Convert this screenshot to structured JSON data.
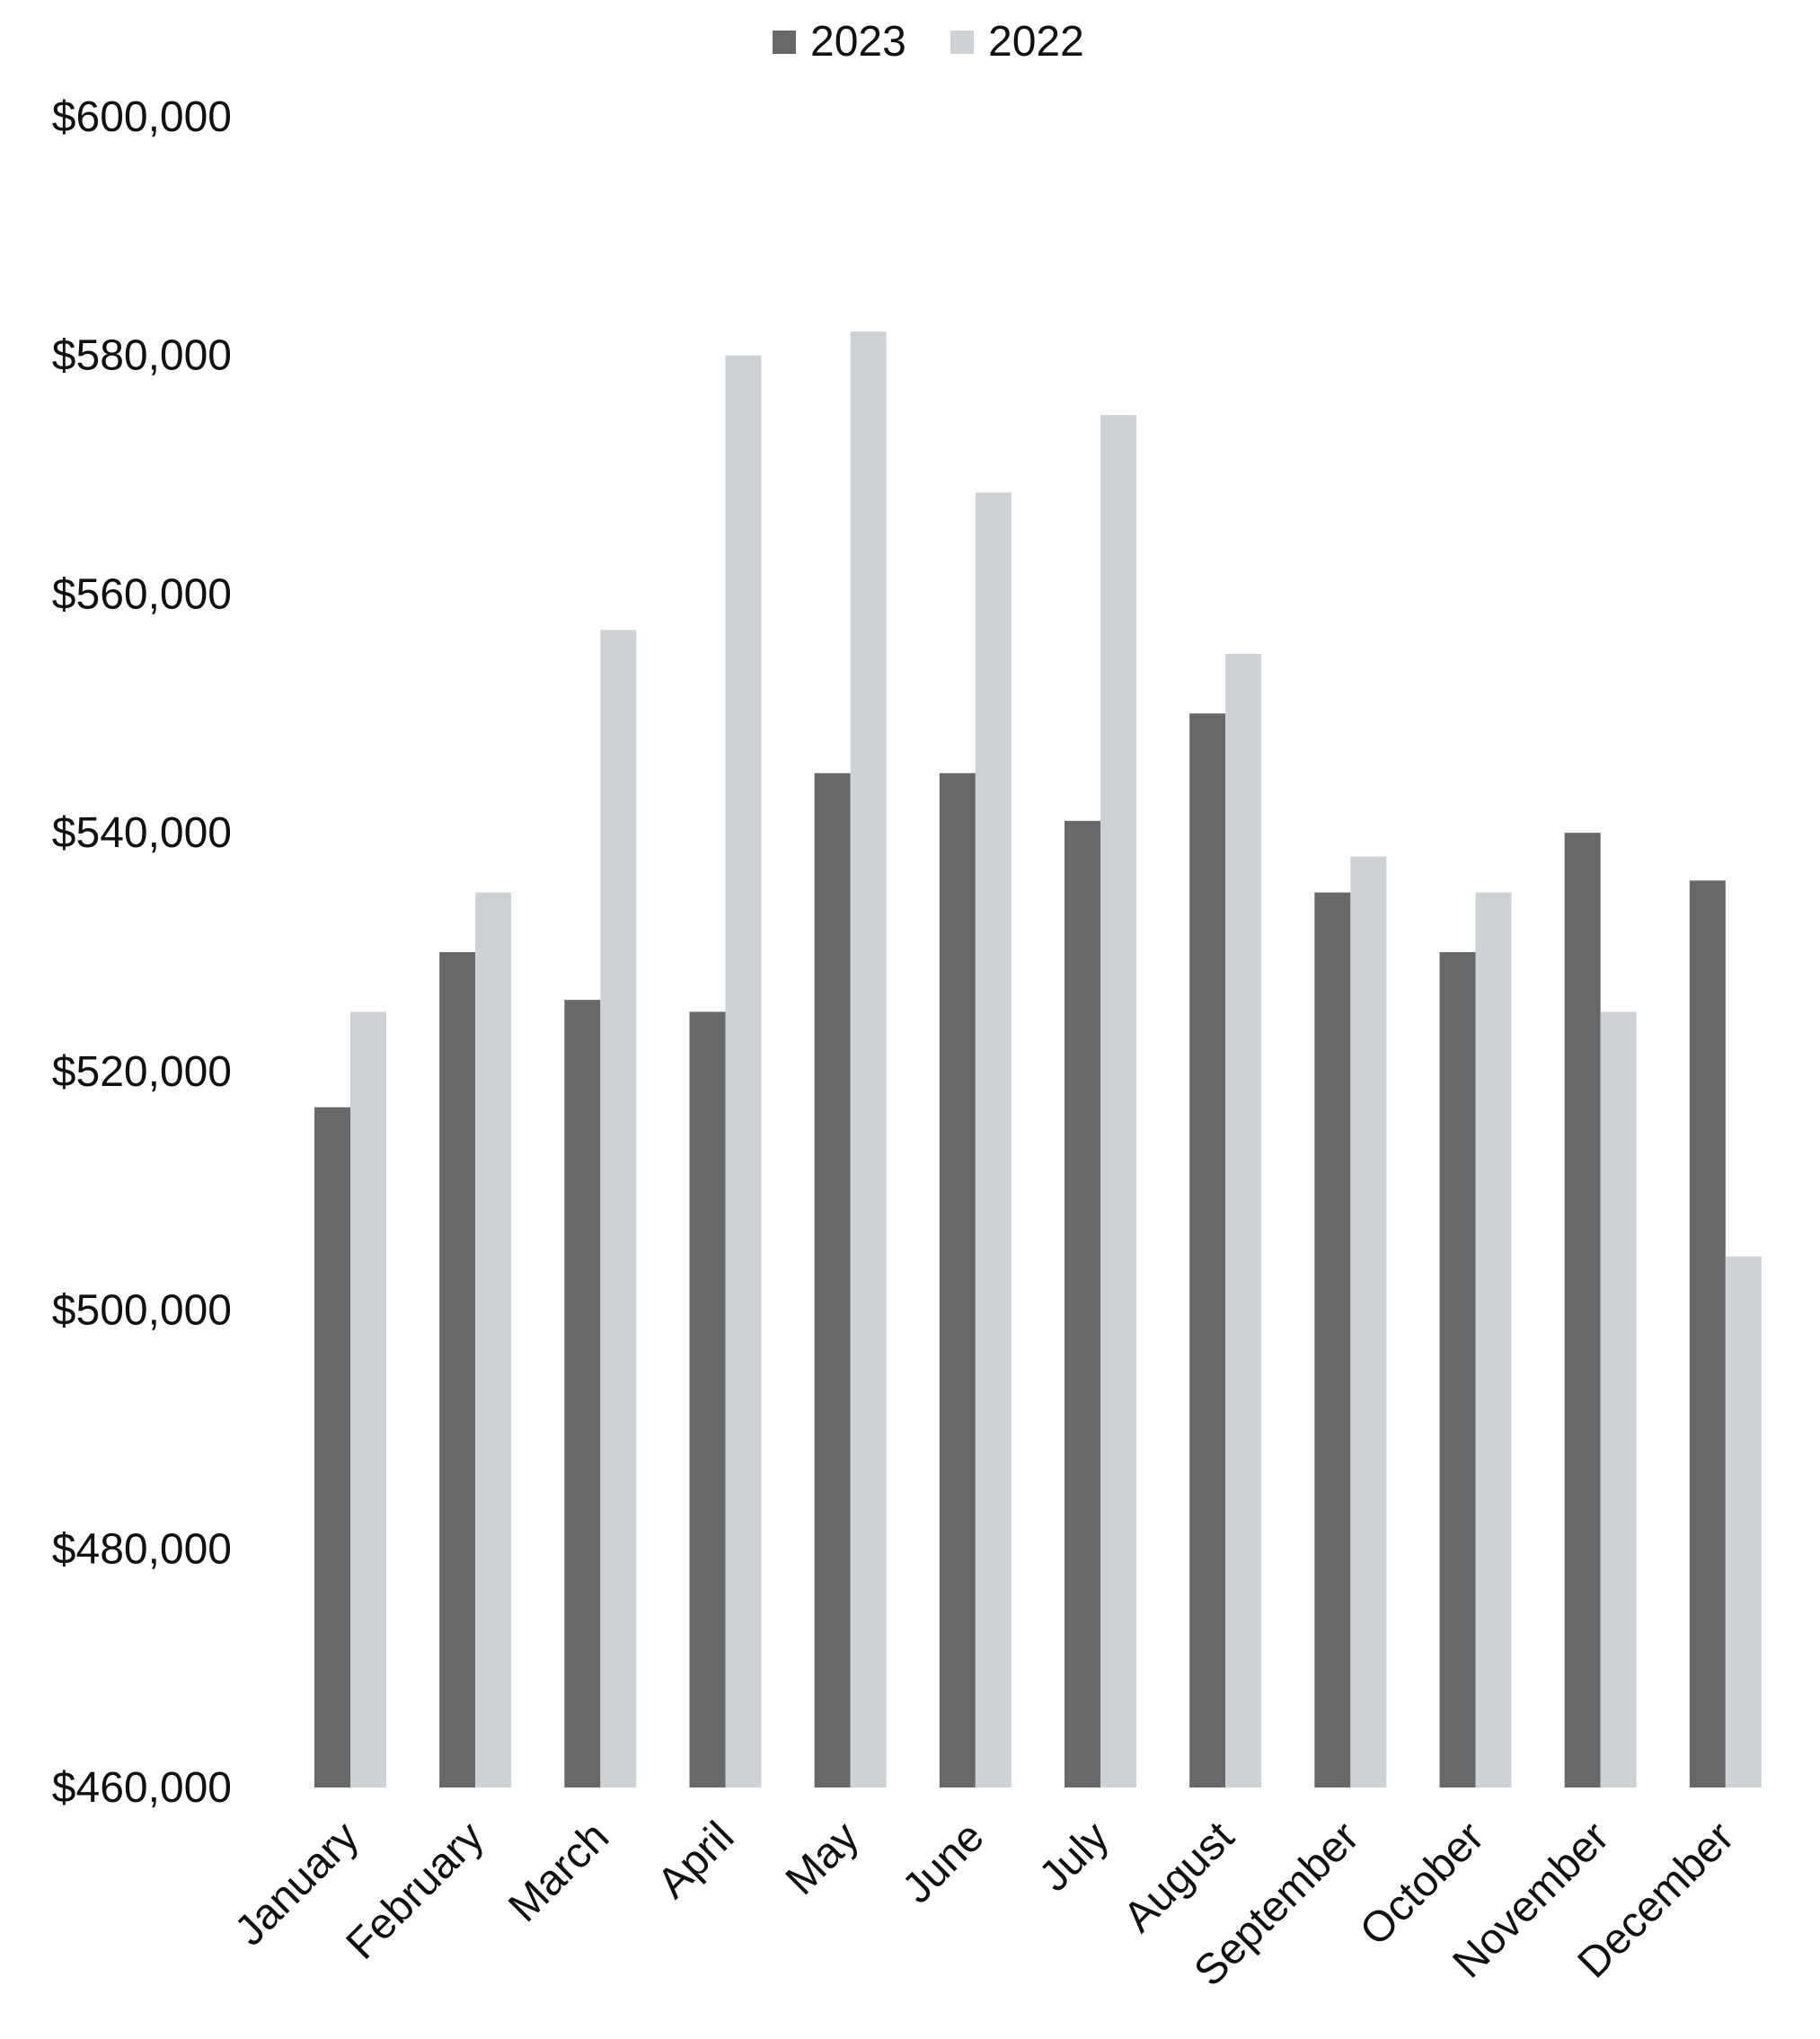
{
  "chart_data": {
    "type": "bar",
    "title": "",
    "xlabel": "",
    "ylabel": "",
    "categories": [
      "January",
      "February",
      "March",
      "April",
      "May",
      "June",
      "July",
      "August",
      "September",
      "October",
      "November",
      "December"
    ],
    "series": [
      {
        "name": "2023",
        "color": "#686868",
        "values": [
          517000,
          530000,
          526000,
          525000,
          545000,
          545000,
          541000,
          550000,
          535000,
          530000,
          540000,
          536000
        ]
      },
      {
        "name": "2022",
        "color": "#cfd2d5",
        "values": [
          525000,
          535000,
          557000,
          580000,
          582000,
          568500,
          575000,
          555000,
          538000,
          535000,
          525000,
          504500
        ]
      }
    ],
    "ylim": [
      460000,
      600000
    ],
    "yticks": [
      460000,
      480000,
      500000,
      520000,
      540000,
      560000,
      580000,
      600000
    ],
    "ytick_labels": [
      "$460,000",
      "$480,000",
      "$500,000",
      "$520,000",
      "$540,000",
      "$560,000",
      "$580,000",
      "$600,000"
    ],
    "grid": false,
    "legend": "top-center"
  }
}
